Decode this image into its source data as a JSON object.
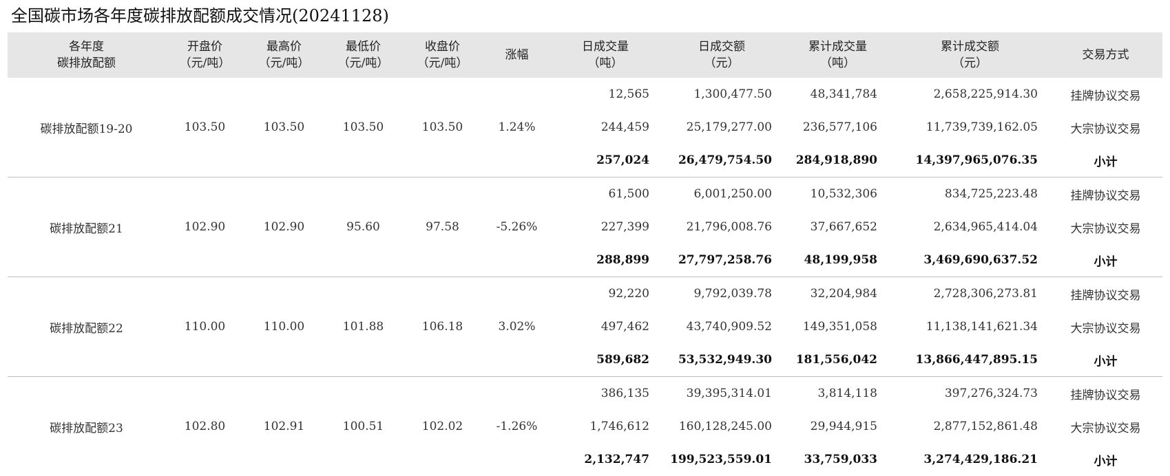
{
  "title": "全国碳市场各年度碳排放配额成交情况(20241128)",
  "headers": [
    {
      "line1": "各年度",
      "line2": "碳排放配额"
    },
    {
      "line1": "开盘价",
      "line2": "（元/吨）"
    },
    {
      "line1": "最高价",
      "line2": "（元/吨）"
    },
    {
      "line1": "最低价",
      "line2": "（元/吨）"
    },
    {
      "line1": "收盘价",
      "line2": "（元/吨）"
    },
    {
      "line1": "涨幅",
      "line2": ""
    },
    {
      "line1": "日成交量",
      "line2": "（吨）"
    },
    {
      "line1": "日成交额",
      "line2": "（元）"
    },
    {
      "line1": "累计成交量",
      "line2": "（吨）"
    },
    {
      "line1": "累计成交额",
      "line2": "（元）"
    },
    {
      "line1": "交易方式",
      "line2": ""
    }
  ],
  "groups": [
    {
      "name": "碳排放配额19-20",
      "open": "103.50",
      "high": "103.50",
      "low": "103.50",
      "close": "103.50",
      "change": "1.24%",
      "rows": [
        {
          "vol": "12,565",
          "amt": "1,300,477.50",
          "cvol": "48,341,784",
          "camt": "2,658,225,914.30",
          "mode": "挂牌协议交易"
        },
        {
          "vol": "244,459",
          "amt": "25,179,277.00",
          "cvol": "236,577,106",
          "camt": "11,739,739,162.05",
          "mode": "大宗协议交易"
        },
        {
          "vol": "257,024",
          "amt": "26,479,754.50",
          "cvol": "284,918,890",
          "camt": "14,397,965,076.35",
          "mode": "小计"
        }
      ]
    },
    {
      "name": "碳排放配额21",
      "open": "102.90",
      "high": "102.90",
      "low": "95.60",
      "close": "97.58",
      "change": "-5.26%",
      "rows": [
        {
          "vol": "61,500",
          "amt": "6,001,250.00",
          "cvol": "10,532,306",
          "camt": "834,725,223.48",
          "mode": "挂牌协议交易"
        },
        {
          "vol": "227,399",
          "amt": "21,796,008.76",
          "cvol": "37,667,652",
          "camt": "2,634,965,414.04",
          "mode": "大宗协议交易"
        },
        {
          "vol": "288,899",
          "amt": "27,797,258.76",
          "cvol": "48,199,958",
          "camt": "3,469,690,637.52",
          "mode": "小计"
        }
      ]
    },
    {
      "name": "碳排放配额22",
      "open": "110.00",
      "high": "110.00",
      "low": "101.88",
      "close": "106.18",
      "change": "3.02%",
      "rows": [
        {
          "vol": "92,220",
          "amt": "9,792,039.78",
          "cvol": "32,204,984",
          "camt": "2,728,306,273.81",
          "mode": "挂牌协议交易"
        },
        {
          "vol": "497,462",
          "amt": "43,740,909.52",
          "cvol": "149,351,058",
          "camt": "11,138,141,621.34",
          "mode": "大宗协议交易"
        },
        {
          "vol": "589,682",
          "amt": "53,532,949.30",
          "cvol": "181,556,042",
          "camt": "13,866,447,895.15",
          "mode": "小计"
        }
      ]
    },
    {
      "name": "碳排放配额23",
      "open": "102.80",
      "high": "102.91",
      "low": "100.51",
      "close": "102.02",
      "change": "-1.26%",
      "rows": [
        {
          "vol": "386,135",
          "amt": "39,395,314.01",
          "cvol": "3,814,118",
          "camt": "397,276,324.73",
          "mode": "挂牌协议交易"
        },
        {
          "vol": "1,746,612",
          "amt": "160,128,245.00",
          "cvol": "29,944,915",
          "camt": "2,877,152,861.48",
          "mode": "大宗协议交易"
        },
        {
          "vol": "2,132,747",
          "amt": "199,523,559.01",
          "cvol": "33,759,033",
          "camt": "3,274,429,186.21",
          "mode": "小计"
        }
      ]
    }
  ]
}
